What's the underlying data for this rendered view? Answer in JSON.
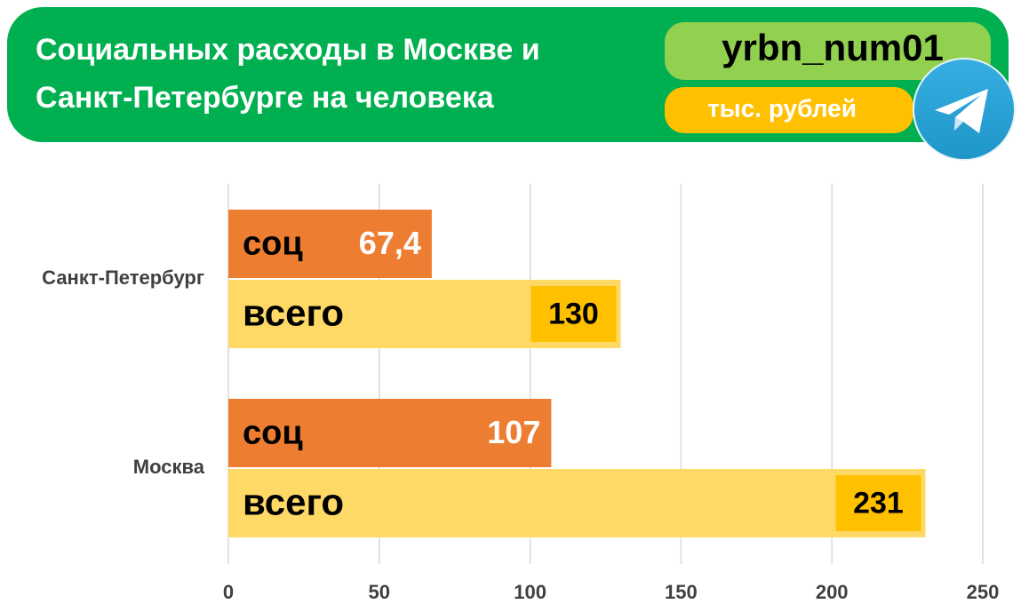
{
  "chart_data": {
    "type": "bar",
    "orientation": "horizontal",
    "title": [
      "Социальных расходы в Москве и",
      "Санкт-Петербурге на человека"
    ],
    "badge": "yrbn_num01",
    "unit": "тыс. рублей",
    "categories": [
      "Санкт-Петербург",
      "Москва"
    ],
    "series": [
      {
        "name": "соц",
        "color": "#ED7D31",
        "values": [
          67.4,
          107
        ],
        "value_labels": [
          "67,4",
          "107"
        ]
      },
      {
        "name": "всего",
        "color": "#FFD966",
        "values": [
          130,
          231
        ]
      }
    ],
    "xlim": [
      0,
      250
    ],
    "xticks": [
      0,
      50,
      100,
      150,
      200,
      250
    ],
    "grid": true
  }
}
